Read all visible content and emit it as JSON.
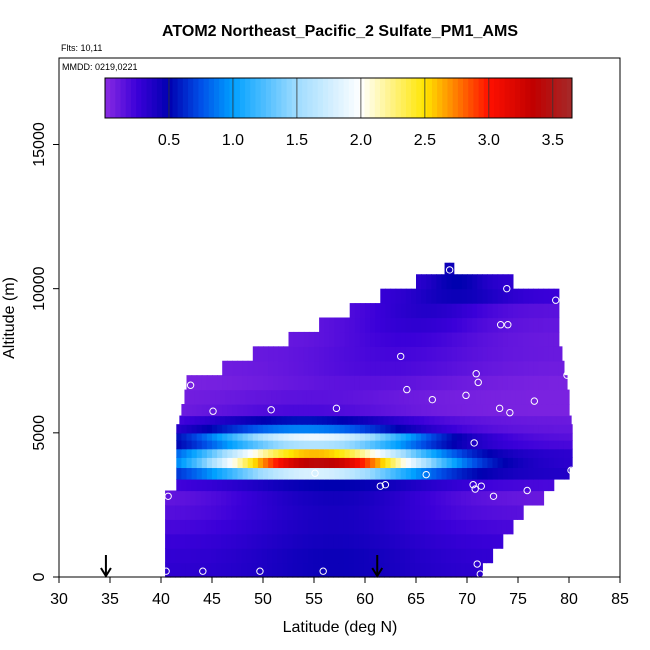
{
  "chart_data": {
    "type": "heatmap",
    "title": "ATOM2 Northeast_Pacific_2 Sulfate_PM1_AMS",
    "flights_label": "Flts: 10,11",
    "dates_label": "MMDD: 0219,0221",
    "xlabel": "Latitude (deg N)",
    "ylabel": "Altitude (m)",
    "xlim": [
      30,
      85
    ],
    "ylim": [
      0,
      18000
    ],
    "x_ticks": [
      "30",
      "35",
      "40",
      "45",
      "50",
      "55",
      "60",
      "65",
      "70",
      "75",
      "80",
      "85"
    ],
    "x_tick_values": [
      30,
      35,
      40,
      45,
      50,
      55,
      60,
      65,
      70,
      75,
      80,
      85
    ],
    "y_ticks": [
      "0",
      "5000",
      "10000",
      "15000"
    ],
    "y_tick_values": [
      0,
      5000,
      10000,
      15000
    ],
    "colorbar": {
      "range": [
        0,
        3.65
      ],
      "tick_labels": [
        "0.5",
        "1.0",
        "1.5",
        "2.0",
        "2.5",
        "3.0",
        "3.5"
      ],
      "tick_values": [
        0.5,
        1.0,
        1.5,
        2.0,
        2.5,
        3.0,
        3.5
      ],
      "separator_values": [
        0.5,
        1.0,
        1.5,
        2.0,
        2.5,
        3.0,
        3.5
      ],
      "color_stops": [
        {
          "v": 0.0,
          "c": "#8a2be2"
        },
        {
          "v": 0.25,
          "c": "#3b00d9"
        },
        {
          "v": 0.5,
          "c": "#0000b0"
        },
        {
          "v": 0.75,
          "c": "#0050e8"
        },
        {
          "v": 1.0,
          "c": "#00a0ff"
        },
        {
          "v": 1.5,
          "c": "#9fdcff"
        },
        {
          "v": 2.0,
          "c": "#ffffff"
        },
        {
          "v": 2.5,
          "c": "#ffe600"
        },
        {
          "v": 3.0,
          "c": "#ff1000"
        },
        {
          "v": 3.35,
          "c": "#c00000"
        },
        {
          "v": 3.65,
          "c": "#a52a2a"
        }
      ]
    },
    "arrows_lat": [
      34.6,
      61.2
    ],
    "bands": [
      {
        "z0": 0,
        "z1": 500,
        "lat0": 40.4,
        "lat1": 71.5,
        "v_edge": 0.3,
        "v_center": 0.45,
        "center": 57
      },
      {
        "z0": 500,
        "z1": 1000,
        "lat0": 40.4,
        "lat1": 72.5,
        "v_edge": 0.28,
        "v_center": 0.45,
        "center": 57
      },
      {
        "z0": 1000,
        "z1": 1500,
        "lat0": 40.4,
        "lat1": 73.5,
        "v_edge": 0.25,
        "v_center": 0.42,
        "center": 57
      },
      {
        "z0": 1500,
        "z1": 2000,
        "lat0": 40.4,
        "lat1": 74.5,
        "v_edge": 0.2,
        "v_center": 0.4,
        "center": 57
      },
      {
        "z0": 2000,
        "z1": 2500,
        "lat0": 40.4,
        "lat1": 75.5,
        "v_edge": 0.15,
        "v_center": 0.4,
        "center": 57
      },
      {
        "z0": 2500,
        "z1": 3000,
        "lat0": 40.4,
        "lat1": 77.5,
        "v_edge": 0.1,
        "v_center": 0.42,
        "center": 57
      },
      {
        "z0": 3000,
        "z1": 3400,
        "lat0": 41.5,
        "lat1": 78.5,
        "v_edge": 0.2,
        "v_center": 0.5,
        "center": 57
      },
      {
        "z0": 3400,
        "z1": 3800,
        "lat0": 41.5,
        "lat1": 80.0,
        "v_edge": 0.35,
        "v_center": 1.8,
        "center": 55
      },
      {
        "z0": 3800,
        "z1": 4150,
        "lat0": 41.5,
        "lat1": 80.3,
        "v_edge": 0.3,
        "v_center": 3.4,
        "center": 55.5
      },
      {
        "z0": 4150,
        "z1": 4450,
        "lat0": 41.5,
        "lat1": 80.3,
        "v_edge": 0.3,
        "v_center": 2.6,
        "center": 55
      },
      {
        "z0": 4450,
        "z1": 4750,
        "lat0": 41.5,
        "lat1": 80.3,
        "v_edge": 0.2,
        "v_center": 1.6,
        "center": 55
      },
      {
        "z0": 4750,
        "z1": 5000,
        "lat0": 41.5,
        "lat1": 80.3,
        "v_edge": 0.15,
        "v_center": 1.9,
        "center": 55
      },
      {
        "z0": 5000,
        "z1": 5300,
        "lat0": 41.5,
        "lat1": 80.3,
        "v_edge": 0.12,
        "v_center": 0.9,
        "center": 54
      },
      {
        "z0": 5300,
        "z1": 5600,
        "lat0": 41.8,
        "lat1": 80.2,
        "v_edge": 0.1,
        "v_center": 0.55,
        "center": 54
      },
      {
        "z0": 5600,
        "z1": 6000,
        "lat0": 42.0,
        "lat1": 80.0,
        "v_edge": 0.05,
        "v_center": 0.2,
        "center": 54
      },
      {
        "z0": 6000,
        "z1": 6500,
        "lat0": 42.3,
        "lat1": 80.0,
        "v_edge": 0.05,
        "v_center": 0.15,
        "center": 55
      },
      {
        "z0": 6500,
        "z1": 7000,
        "lat0": 42.5,
        "lat1": 79.8,
        "v_edge": 0.05,
        "v_center": 0.15,
        "center": 60
      },
      {
        "z0": 7000,
        "z1": 7500,
        "lat0": 46.0,
        "lat1": 79.5,
        "v_edge": 0.08,
        "v_center": 0.2,
        "center": 62
      },
      {
        "z0": 7500,
        "z1": 8000,
        "lat0": 49.0,
        "lat1": 79.3,
        "v_edge": 0.1,
        "v_center": 0.22,
        "center": 63
      },
      {
        "z0": 8000,
        "z1": 8500,
        "lat0": 52.5,
        "lat1": 79.0,
        "v_edge": 0.1,
        "v_center": 0.25,
        "center": 64
      },
      {
        "z0": 8500,
        "z1": 9000,
        "lat0": 55.5,
        "lat1": 79.0,
        "v_edge": 0.12,
        "v_center": 0.3,
        "center": 65
      },
      {
        "z0": 9000,
        "z1": 9500,
        "lat0": 58.5,
        "lat1": 79.0,
        "v_edge": 0.15,
        "v_center": 0.35,
        "center": 66
      },
      {
        "z0": 9500,
        "z1": 10000,
        "lat0": 61.5,
        "lat1": 79.0,
        "v_edge": 0.25,
        "v_center": 0.45,
        "center": 69
      },
      {
        "z0": 10000,
        "z1": 10500,
        "lat0": 65.0,
        "lat1": 74.5,
        "v_edge": 0.3,
        "v_center": 0.5,
        "center": 69
      },
      {
        "z0": 10500,
        "z1": 10900,
        "lat0": 67.8,
        "lat1": 68.7,
        "v_edge": 0.45,
        "v_center": 0.45,
        "center": 68
      }
    ],
    "points": [
      [
        40.5,
        200
      ],
      [
        44.1,
        200
      ],
      [
        49.7,
        200
      ],
      [
        55.9,
        200
      ],
      [
        71.0,
        450
      ],
      [
        71.3,
        100
      ],
      [
        40.7,
        2800
      ],
      [
        62.0,
        3200
      ],
      [
        61.5,
        3150
      ],
      [
        66.0,
        3550
      ],
      [
        70.6,
        3200
      ],
      [
        70.8,
        3050
      ],
      [
        71.4,
        3150
      ],
      [
        72.6,
        2800
      ],
      [
        75.9,
        3000
      ],
      [
        80.2,
        3700
      ],
      [
        55.1,
        3600
      ],
      [
        70.7,
        4650
      ],
      [
        45.1,
        5750
      ],
      [
        50.8,
        5800
      ],
      [
        57.2,
        5850
      ],
      [
        69.9,
        6300
      ],
      [
        73.2,
        5850
      ],
      [
        74.2,
        5700
      ],
      [
        76.6,
        6100
      ],
      [
        42.9,
        6650
      ],
      [
        64.1,
        6500
      ],
      [
        66.6,
        6150
      ],
      [
        70.9,
        7050
      ],
      [
        71.1,
        6750
      ],
      [
        79.8,
        7000
      ],
      [
        63.5,
        7650
      ],
      [
        73.3,
        8750
      ],
      [
        74.0,
        8750
      ],
      [
        73.9,
        10000
      ],
      [
        78.7,
        9600
      ],
      [
        68.3,
        10650
      ]
    ]
  }
}
